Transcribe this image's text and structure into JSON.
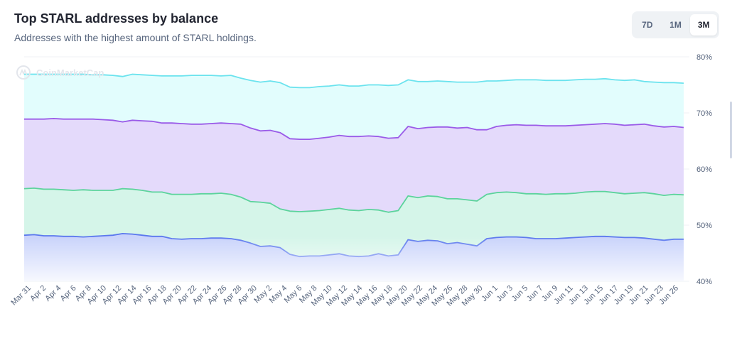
{
  "header": {
    "title": "Top STARL addresses by balance",
    "subtitle": "Addresses with the highest amount of STARL holdings."
  },
  "range_tabs": [
    {
      "label": "7D",
      "active": false
    },
    {
      "label": "1M",
      "active": false
    },
    {
      "label": "3M",
      "active": true
    }
  ],
  "watermark": "CoinMarketCap",
  "chart_data": {
    "type": "area",
    "title": "Top STARL addresses by balance",
    "subtitle": "Addresses with the highest amount of STARL holdings.",
    "xlabel": "",
    "ylabel": "",
    "ylim": [
      40,
      80
    ],
    "y_ticks": [
      "80%",
      "70%",
      "60%",
      "50%",
      "40%"
    ],
    "grid": true,
    "stacked": false,
    "x_tick_labels": [
      "Mar 31",
      "Apr 2",
      "Apr 4",
      "Apr 6",
      "Apr 8",
      "Apr 10",
      "Apr 12",
      "Apr 14",
      "Apr 16",
      "Apr 18",
      "Apr 20",
      "Apr 22",
      "Apr 24",
      "Apr 26",
      "Apr 28",
      "Apr 30",
      "May 2",
      "May 4",
      "May 6",
      "May 8",
      "May 10",
      "May 12",
      "May 14",
      "May 16",
      "May 18",
      "May 20",
      "May 22",
      "May 24",
      "May 26",
      "May 28",
      "May 30",
      "Jun 1",
      "Jun 3",
      "Jun 5",
      "Jun 7",
      "Jun 9",
      "Jun 11",
      "Jun 13",
      "Jun 15",
      "Jun 17",
      "Jun 19",
      "Jun 21",
      "Jun 23",
      "Jun 26"
    ],
    "series": [
      {
        "color": "#6be3ee",
        "fill": "#e2fdfd",
        "values": [
          76.9,
          76.9,
          76.9,
          76.9,
          76.9,
          76.9,
          76.9,
          76.8,
          76.8,
          76.7,
          76.5,
          76.9,
          76.8,
          76.7,
          76.6,
          76.6,
          76.6,
          76.7,
          76.7,
          76.7,
          76.6,
          76.7,
          76.2,
          75.8,
          75.5,
          75.7,
          75.4,
          74.6,
          74.5,
          74.5,
          74.7,
          74.8,
          75.0,
          74.8,
          74.8,
          75.0,
          75.0,
          74.9,
          75.0,
          75.9,
          75.6,
          75.6,
          75.7,
          75.6,
          75.5,
          75.5,
          75.5,
          75.7,
          75.7,
          75.8,
          75.9,
          75.9,
          75.9,
          75.8,
          75.8,
          75.8,
          75.9,
          76.0,
          76.0,
          76.1,
          75.9,
          75.8,
          75.9,
          75.6,
          75.5,
          75.4,
          75.4,
          75.3
        ]
      },
      {
        "color": "#9a5be8",
        "fill": "#e4dafb",
        "values": [
          68.9,
          68.9,
          68.9,
          69.0,
          68.9,
          68.9,
          68.9,
          68.9,
          68.8,
          68.7,
          68.4,
          68.7,
          68.6,
          68.5,
          68.2,
          68.2,
          68.1,
          68.0,
          68.0,
          68.1,
          68.2,
          68.1,
          68.0,
          67.3,
          66.8,
          66.9,
          66.5,
          65.4,
          65.3,
          65.3,
          65.5,
          65.7,
          66.0,
          65.8,
          65.8,
          65.9,
          65.8,
          65.5,
          65.6,
          67.6,
          67.2,
          67.4,
          67.5,
          67.5,
          67.3,
          67.4,
          67.0,
          67.0,
          67.6,
          67.8,
          67.9,
          67.8,
          67.8,
          67.7,
          67.7,
          67.7,
          67.8,
          67.9,
          68.0,
          68.1,
          68.0,
          67.8,
          67.9,
          68.0,
          67.7,
          67.5,
          67.6,
          67.4
        ]
      },
      {
        "color": "#5cd39c",
        "fill": "#d5f5e9",
        "values": [
          56.5,
          56.6,
          56.4,
          56.4,
          56.3,
          56.2,
          56.3,
          56.2,
          56.2,
          56.2,
          56.5,
          56.4,
          56.2,
          55.9,
          55.9,
          55.5,
          55.5,
          55.5,
          55.6,
          55.6,
          55.7,
          55.5,
          55.0,
          54.2,
          54.1,
          53.9,
          52.9,
          52.5,
          52.4,
          52.5,
          52.6,
          52.8,
          53.0,
          52.7,
          52.6,
          52.8,
          52.7,
          52.3,
          52.6,
          55.2,
          54.9,
          55.2,
          55.1,
          54.7,
          54.7,
          54.5,
          54.3,
          55.5,
          55.8,
          55.9,
          55.8,
          55.6,
          55.6,
          55.5,
          55.6,
          55.6,
          55.7,
          55.9,
          56.0,
          56.0,
          55.8,
          55.6,
          55.7,
          55.8,
          55.6,
          55.3,
          55.5,
          55.4
        ]
      },
      {
        "color": "#5b78ee",
        "fill": "#c9d3fb",
        "values": [
          48.2,
          48.3,
          48.1,
          48.1,
          48.0,
          48.0,
          47.9,
          48.0,
          48.1,
          48.2,
          48.5,
          48.4,
          48.2,
          48.0,
          48.0,
          47.6,
          47.5,
          47.6,
          47.6,
          47.7,
          47.7,
          47.6,
          47.3,
          46.8,
          46.2,
          46.3,
          46.0,
          44.8,
          44.4,
          44.5,
          44.5,
          44.7,
          44.9,
          44.5,
          44.4,
          44.5,
          44.9,
          44.5,
          44.7,
          47.4,
          47.1,
          47.3,
          47.2,
          46.7,
          46.9,
          46.6,
          46.3,
          47.6,
          47.8,
          47.9,
          47.9,
          47.8,
          47.6,
          47.6,
          47.6,
          47.7,
          47.8,
          47.9,
          48.0,
          48.0,
          47.9,
          47.8,
          47.8,
          47.7,
          47.5,
          47.3,
          47.5,
          47.5
        ]
      }
    ]
  }
}
